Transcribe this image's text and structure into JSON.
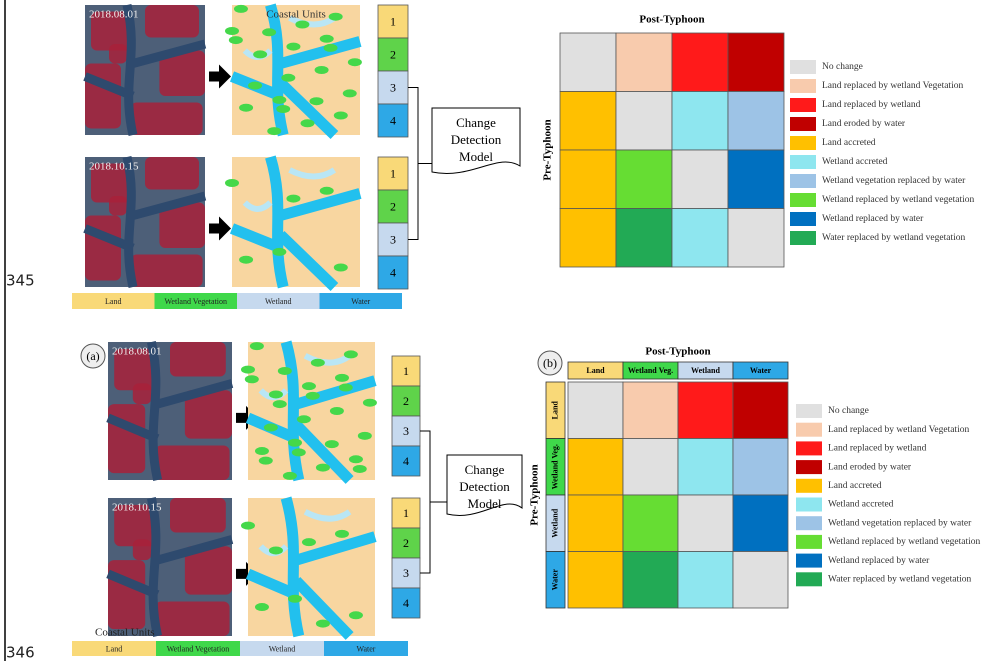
{
  "line_numbers": [
    "345",
    "346"
  ],
  "figures": [
    {
      "dates": [
        "2018.08.01",
        "2018.10.15"
      ],
      "map_title": "Coastal Units",
      "unit_numbers": [
        "1",
        "2",
        "3",
        "4"
      ],
      "model_label": [
        "Change",
        "Detection",
        "Model"
      ],
      "matrix_title": "Post-Typhoon",
      "row_axis_label": "Pre-Typhoon",
      "legend": [
        "No change",
        "Land replaced by wetland Vegetation",
        "Land replaced by wetland",
        "Land eroded by water",
        "Land accreted",
        "Wetland accreted",
        "Wetland vegetation replaced by water",
        "Wetland replaced by wetland vegetation",
        "Wetland replaced by water",
        "Water replaced by wetland vegetation"
      ],
      "classes": [
        "Land",
        "Wetland Vegetation",
        "Wetland",
        "Water"
      ]
    },
    {
      "panel_labels": [
        "(a)",
        "(b)"
      ],
      "dates": [
        "2018.08.01",
        "2018.10.15"
      ],
      "unit_numbers": [
        "1",
        "2",
        "3",
        "4"
      ],
      "model_label": [
        "Change",
        "Detection",
        "Model"
      ],
      "matrix_title": "Post-Typhoon",
      "column_headers": [
        "Land",
        "Wetland Veg.",
        "Wetland",
        "Water"
      ],
      "row_headers": [
        "Land",
        "Wetland Veg.",
        "Wetland",
        "Water"
      ],
      "row_axis_label": "Pre-Typhoon",
      "legend": [
        "No change",
        "Land replaced by wetland Vegetation",
        "Land replaced by wetland",
        "Land eroded by water",
        "Land accreted",
        "Wetland accreted",
        "Wetland vegetation replaced by water",
        "Wetland replaced by wetland vegetation",
        "Wetland replaced by water",
        "Water replaced by wetland vegetation"
      ],
      "caption": "Coastal Units",
      "classes": [
        "Land",
        "Wetland Vegetation",
        "Wetland",
        "Water"
      ]
    }
  ]
}
